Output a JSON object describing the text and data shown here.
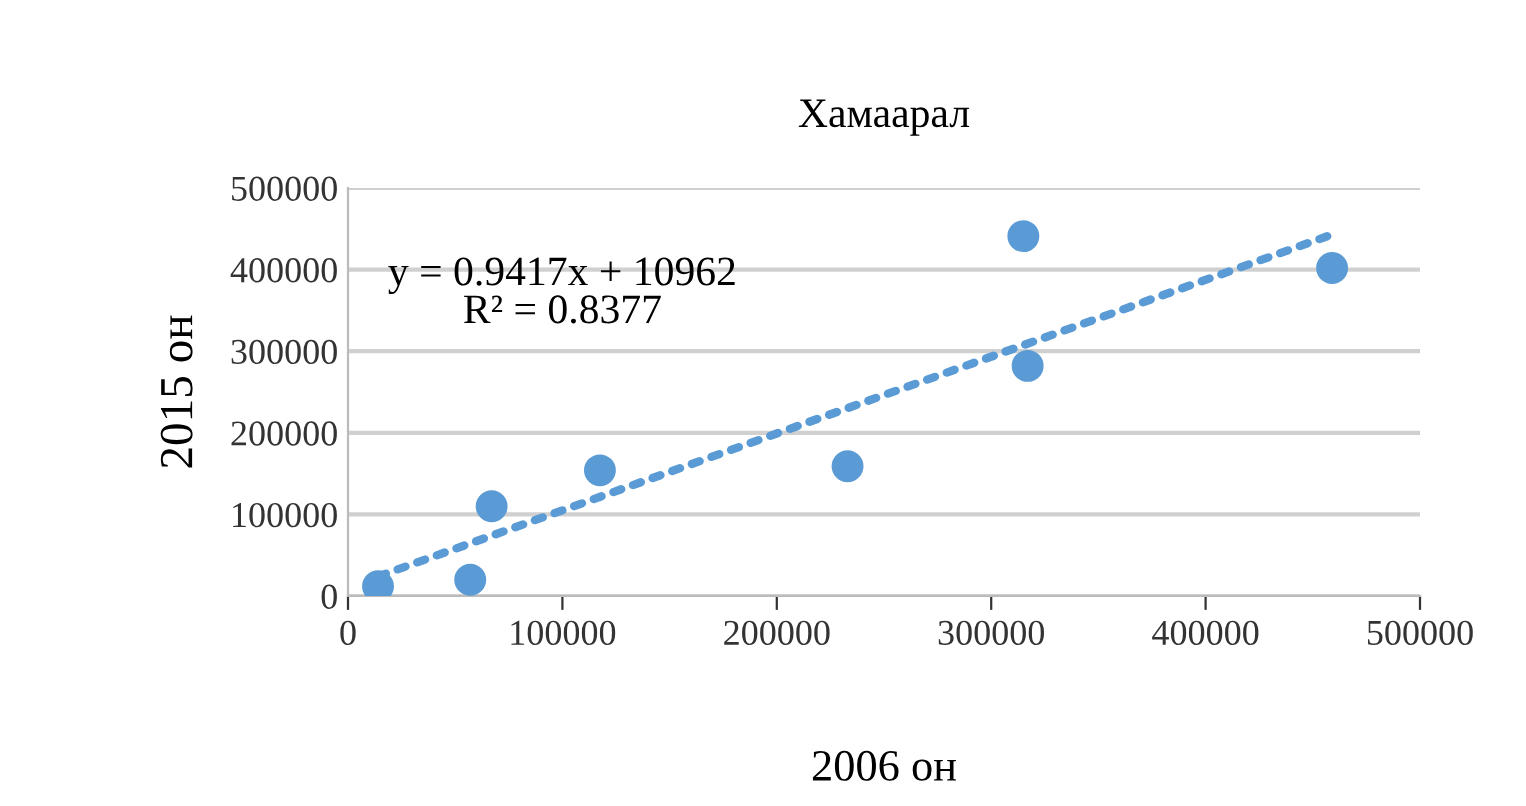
{
  "chart_data": {
    "type": "scatter",
    "title": "Хамаарал",
    "xlabel": "2006 он",
    "ylabel": "2015 он",
    "series": [
      {
        "color": "#5b9bd5",
        "x": [
          14000,
          57000,
          67000,
          117500,
          233000,
          315000,
          317000,
          459000
        ],
        "values": [
          12000,
          20000,
          110000,
          154000,
          159000,
          441000,
          282000,
          402000
        ],
        "marker": "circle"
      },
      {
        "type": "line",
        "color": "#5b9bd5",
        "x": [
          14000,
          459000
        ],
        "values": [
          24000,
          443000
        ],
        "line_style": "dotted"
      }
    ],
    "annotations": [
      "y = 0.9417x + 10962\nR² = 0.8377"
    ],
    "xlim": [
      0,
      500000
    ],
    "ylim": [
      0,
      500000
    ],
    "xticks": [
      0,
      100000,
      200000,
      300000,
      400000,
      500000
    ],
    "yticks": [
      0,
      100000,
      200000,
      300000,
      400000,
      500000
    ],
    "grid": "y",
    "legend": false
  }
}
